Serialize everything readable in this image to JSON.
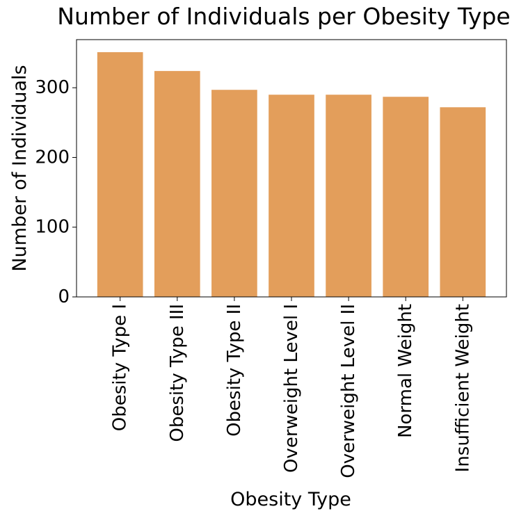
{
  "chart_data": {
    "type": "bar",
    "title": "Number of Individuals per Obesity Type",
    "xlabel": "Obesity Type",
    "ylabel": "Number of Individuals",
    "categories": [
      "Obesity Type I",
      "Obesity Type III",
      "Obesity Type II",
      "Overweight Level I",
      "Overweight Level II",
      "Normal Weight",
      "Insufficient Weight"
    ],
    "values": [
      351,
      324,
      297,
      290,
      290,
      287,
      272
    ],
    "ylim": [
      0,
      369
    ],
    "yticks": [
      0,
      100,
      200,
      300
    ],
    "grid": false,
    "bar_color": "#E39E5B"
  }
}
